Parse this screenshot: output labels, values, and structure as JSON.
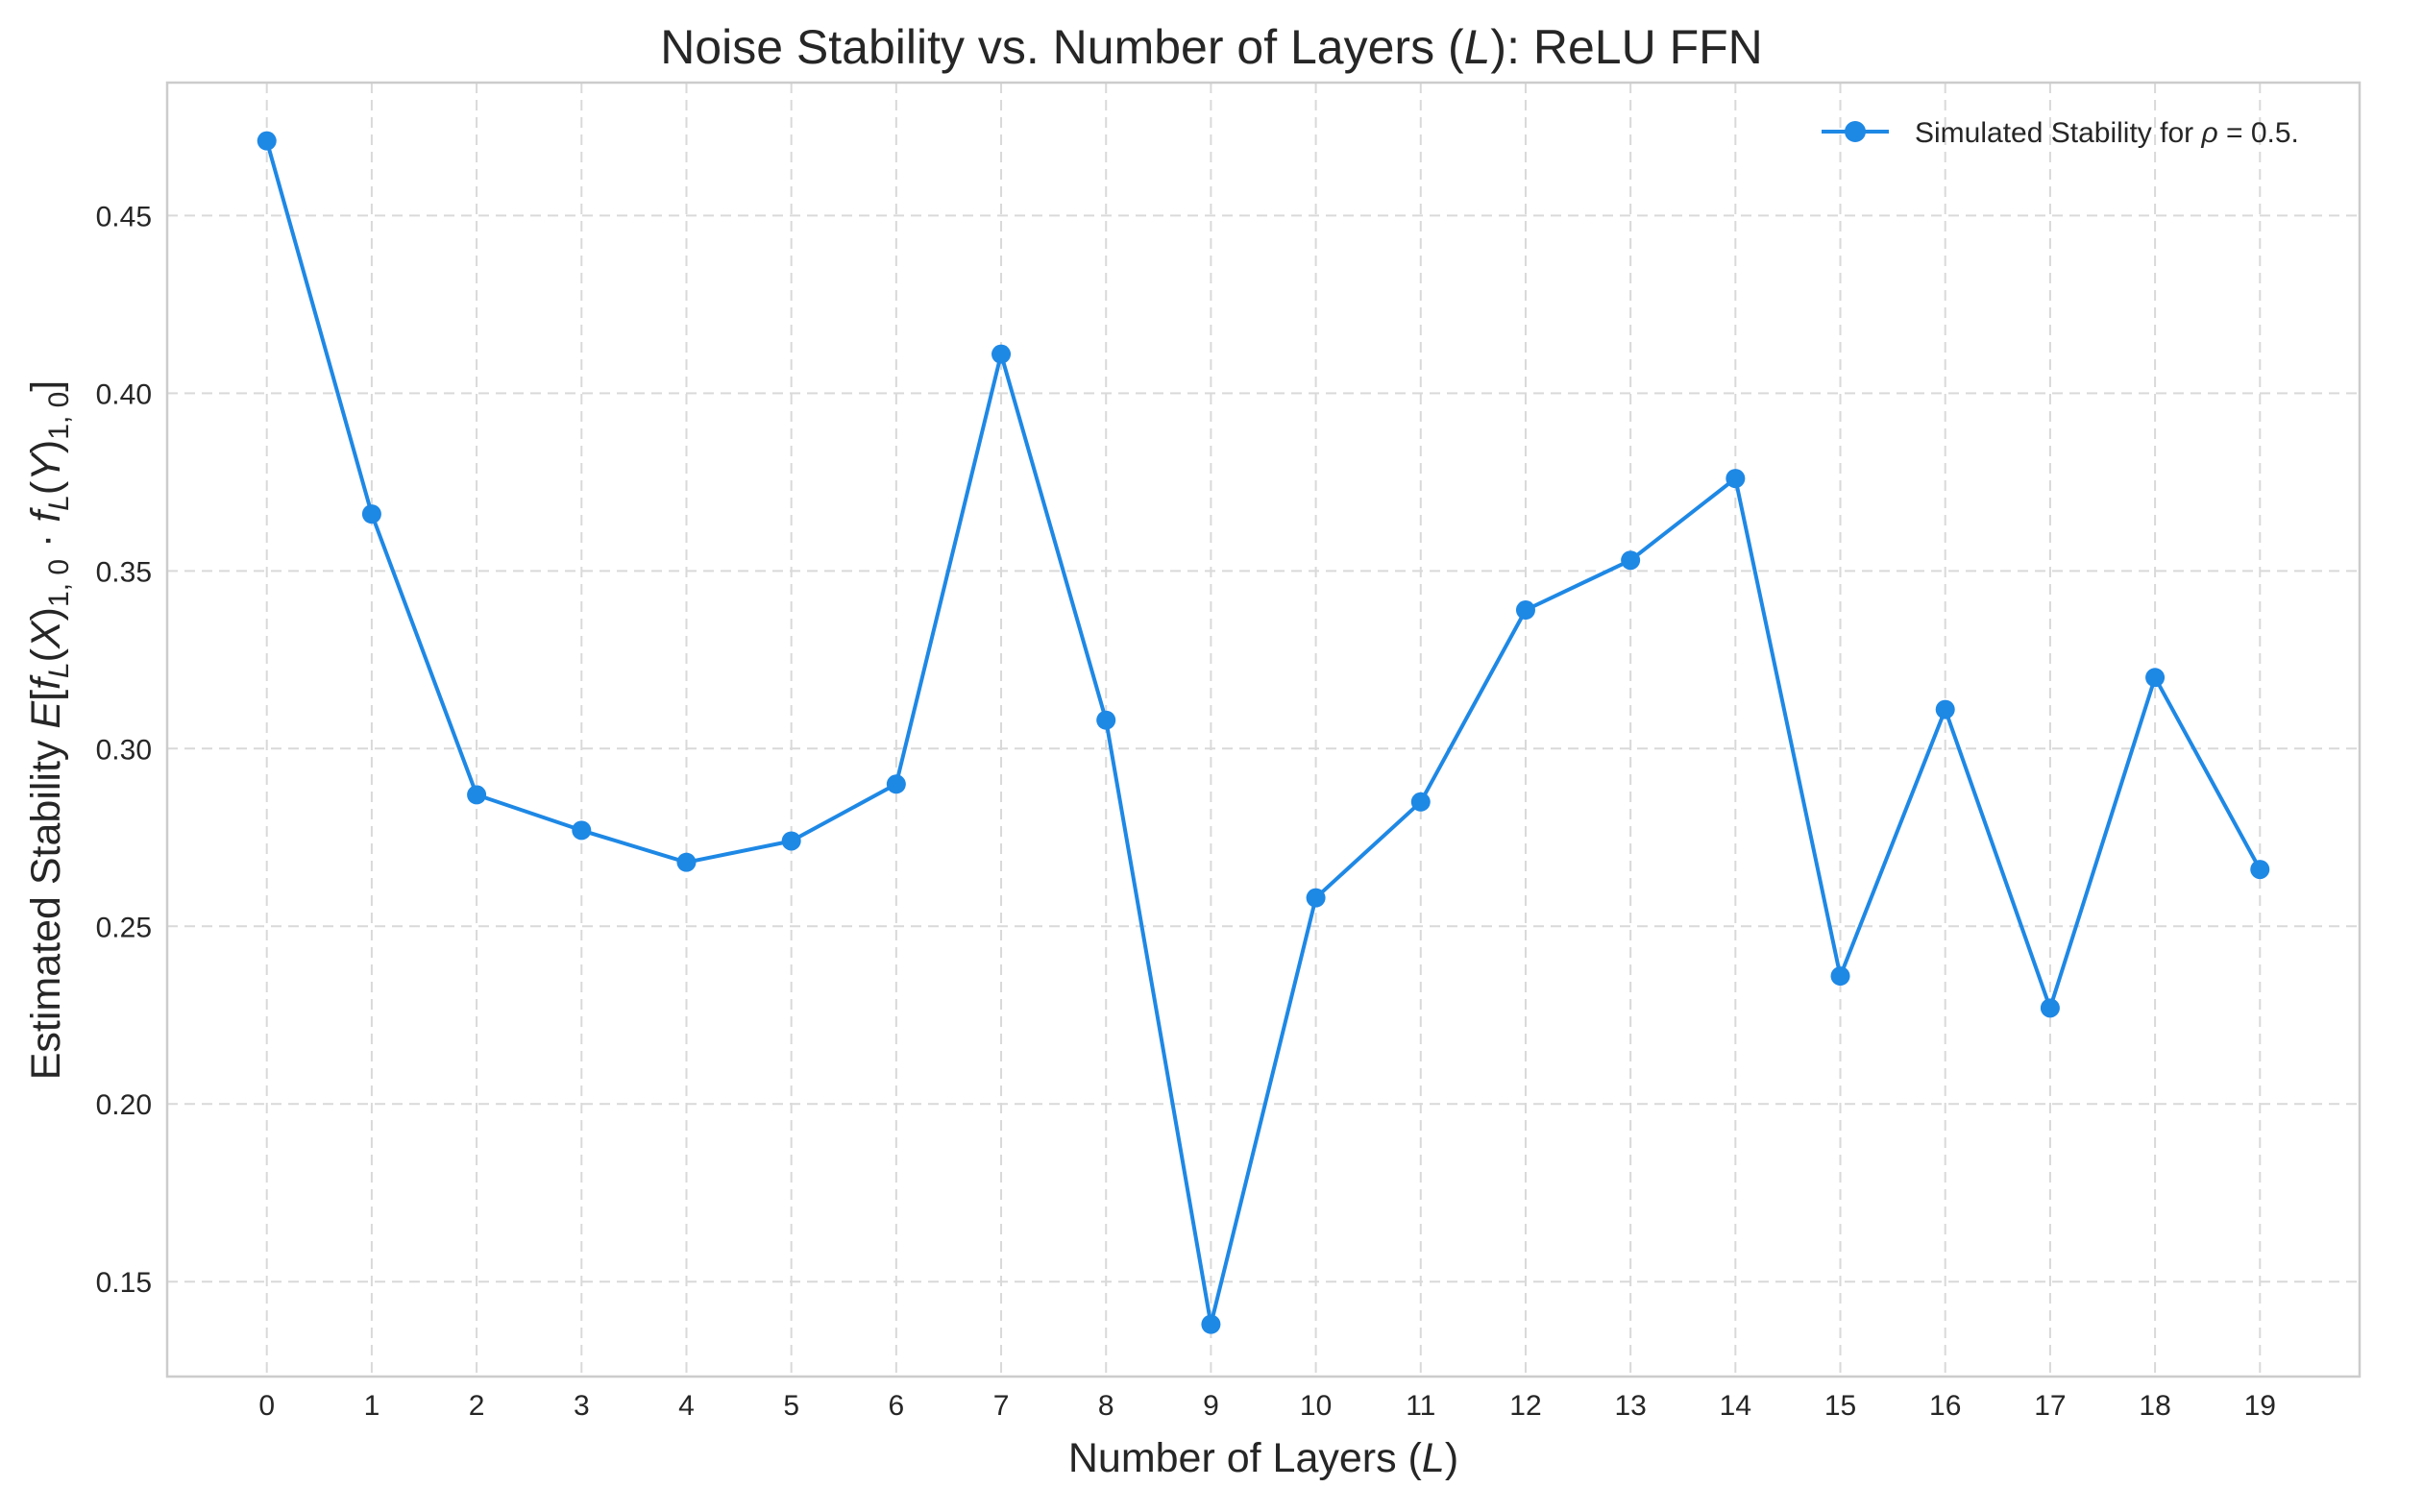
{
  "chart_data": {
    "type": "line",
    "title": "Noise Stability vs. Number of Layers (L): ReLU FFN",
    "xlabel": "Number of Layers (L)",
    "ylabel": "Estimated Stability E[f_L(X)_{1,0} · f_L(Y)_{1,0}]",
    "x": [
      0,
      1,
      2,
      3,
      4,
      5,
      6,
      7,
      8,
      9,
      10,
      11,
      12,
      13,
      14,
      15,
      16,
      17,
      18,
      19
    ],
    "xticks": [
      "0",
      "1",
      "2",
      "3",
      "4",
      "5",
      "6",
      "7",
      "8",
      "9",
      "10",
      "11",
      "12",
      "13",
      "14",
      "15",
      "16",
      "17",
      "18",
      "19"
    ],
    "yticks": [
      "0.15",
      "0.20",
      "0.25",
      "0.30",
      "0.35",
      "0.40",
      "0.45"
    ],
    "xlim": [
      -0.95,
      19.95
    ],
    "ylim": [
      0.1233,
      0.4874
    ],
    "grid": true,
    "legend_position": "top-right",
    "series": [
      {
        "name": "Simulated Stability for ρ = 0.5.",
        "color": "#1e88e5",
        "values": [
          0.471,
          0.366,
          0.287,
          0.277,
          0.268,
          0.274,
          0.29,
          0.411,
          0.308,
          0.138,
          0.258,
          0.285,
          0.339,
          0.353,
          0.376,
          0.236,
          0.311,
          0.227,
          0.32,
          0.266
        ]
      }
    ]
  }
}
